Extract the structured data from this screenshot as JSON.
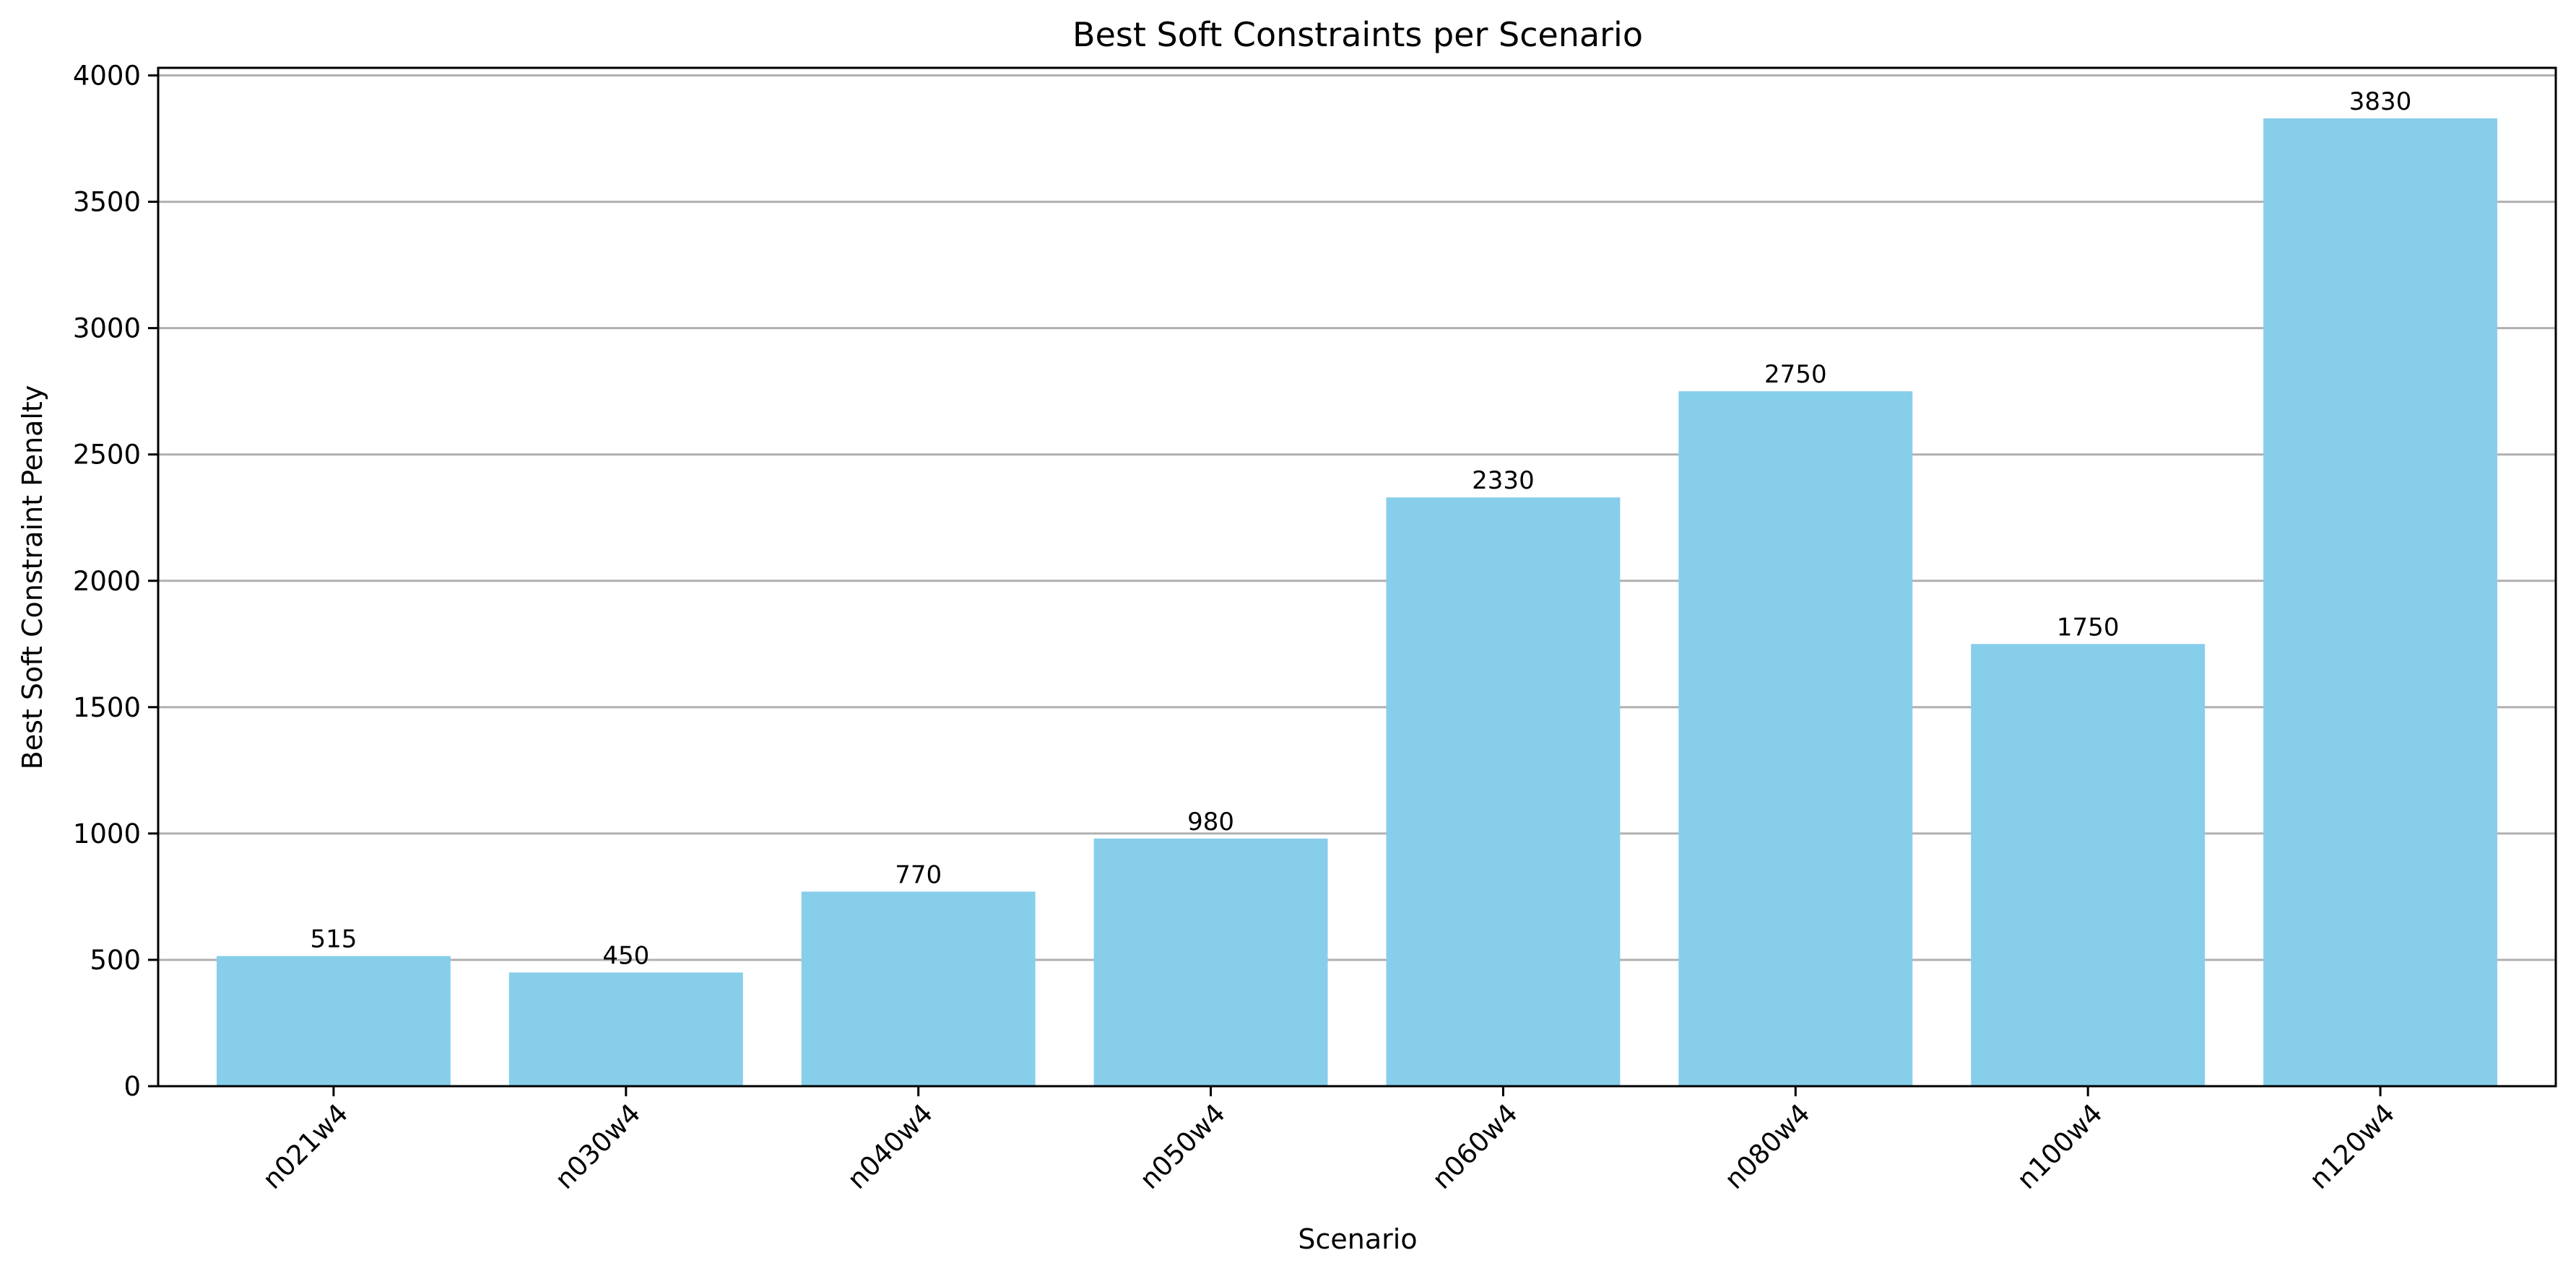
{
  "chart_data": {
    "type": "bar",
    "title": "Best Soft Constraints per Scenario",
    "xlabel": "Scenario",
    "ylabel": "Best Soft Constraint Penalty",
    "categories": [
      "n021w4",
      "n030w4",
      "n040w4",
      "n050w4",
      "n060w4",
      "n080w4",
      "n100w4",
      "n120w4"
    ],
    "values": [
      515,
      450,
      770,
      980,
      2330,
      2750,
      1750,
      3830
    ],
    "data_labels": [
      "515",
      "450",
      "770",
      "980",
      "2330",
      "2750",
      "1750",
      "3830"
    ],
    "yticks": [
      0,
      500,
      1000,
      1500,
      2000,
      2500,
      3000,
      3500,
      4000
    ],
    "ylim": [
      0,
      4030
    ],
    "grid": "y",
    "bar_color": "#87ceeb",
    "x_tick_rotation": 45
  }
}
